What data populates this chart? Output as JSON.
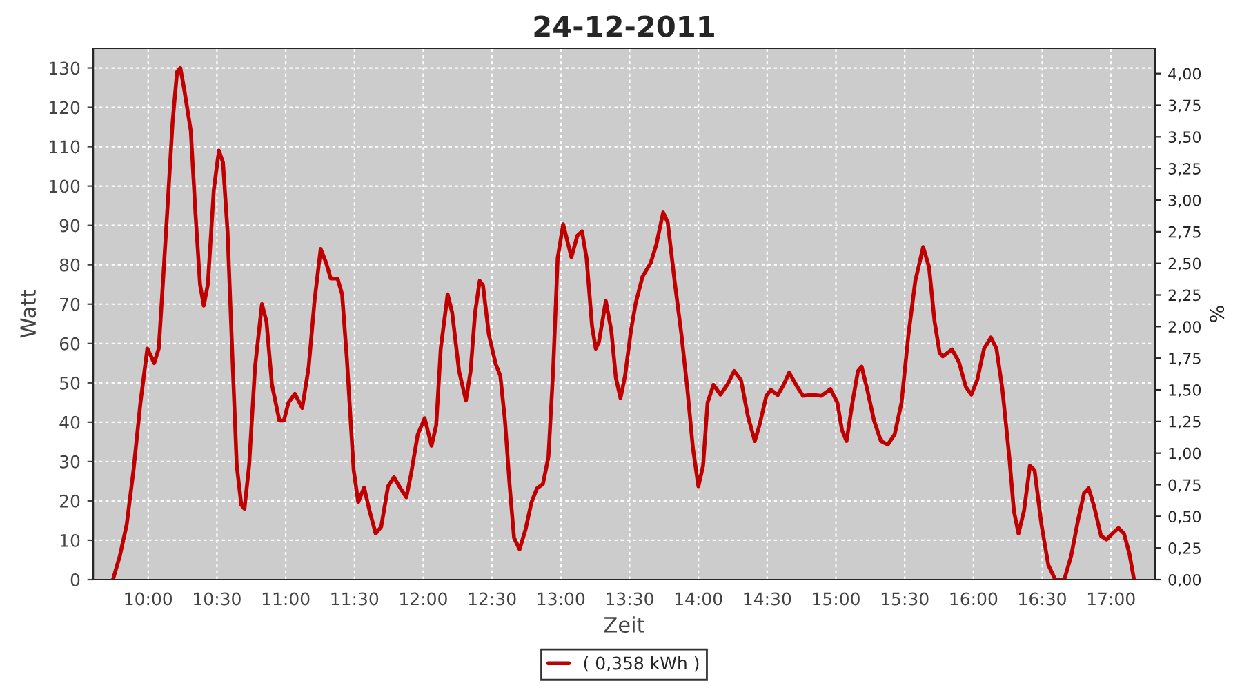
{
  "chart_data": {
    "type": "line",
    "title": "24-12-2011",
    "xlabel": "Zeit",
    "ylabel": "Watt",
    "y2label": "%",
    "xlim": [
      9.6,
      17.32
    ],
    "ylim": [
      0,
      135
    ],
    "y2lim": [
      0,
      4.2
    ],
    "xticks": [
      {
        "value": 10,
        "label": "10:00"
      },
      {
        "value": 10.5,
        "label": "10:30"
      },
      {
        "value": 11,
        "label": "11:00"
      },
      {
        "value": 11.5,
        "label": "11:30"
      },
      {
        "value": 12,
        "label": "12:00"
      },
      {
        "value": 12.5,
        "label": "12:30"
      },
      {
        "value": 13,
        "label": "13:00"
      },
      {
        "value": 13.5,
        "label": "13:30"
      },
      {
        "value": 14,
        "label": "14:00"
      },
      {
        "value": 14.5,
        "label": "14:30"
      },
      {
        "value": 15,
        "label": "15:00"
      },
      {
        "value": 15.5,
        "label": "15:30"
      },
      {
        "value": 16,
        "label": "16:00"
      },
      {
        "value": 16.5,
        "label": "16:30"
      },
      {
        "value": 17,
        "label": "17:00"
      }
    ],
    "yticks": [
      0,
      10,
      20,
      30,
      40,
      50,
      60,
      70,
      80,
      90,
      100,
      110,
      120,
      130
    ],
    "y2ticks": [
      {
        "value": 0,
        "label": "0,00"
      },
      {
        "value": 0.25,
        "label": "0,25"
      },
      {
        "value": 0.5,
        "label": "0,50"
      },
      {
        "value": 0.75,
        "label": "0,75"
      },
      {
        "value": 1,
        "label": "1,00"
      },
      {
        "value": 1.25,
        "label": "1,25"
      },
      {
        "value": 1.5,
        "label": "1,50"
      },
      {
        "value": 1.75,
        "label": "1,75"
      },
      {
        "value": 2,
        "label": "2,00"
      },
      {
        "value": 2.25,
        "label": "2,25"
      },
      {
        "value": 2.5,
        "label": "2,50"
      },
      {
        "value": 2.75,
        "label": "2,75"
      },
      {
        "value": 3,
        "label": "3,00"
      },
      {
        "value": 3.25,
        "label": "3,25"
      },
      {
        "value": 3.5,
        "label": "3,50"
      },
      {
        "value": 3.75,
        "label": "3,75"
      },
      {
        "value": 4,
        "label": "4,00"
      }
    ],
    "grid": true,
    "legend": "bottom",
    "marker": "none",
    "line_style": "solid",
    "series": [
      {
        "name": "( 0,358 kWh )",
        "color": "#c00000",
        "x": [
          9.744,
          9.794,
          9.844,
          9.894,
          9.944,
          9.994,
          10.044,
          10.077,
          10.11,
          10.144,
          10.177,
          10.21,
          10.234,
          10.26,
          10.31,
          10.344,
          10.377,
          10.404,
          10.434,
          10.477,
          10.514,
          10.544,
          10.577,
          10.61,
          10.644,
          10.677,
          10.7,
          10.734,
          10.777,
          10.827,
          10.86,
          10.9,
          10.954,
          10.987,
          11.02,
          11.067,
          11.12,
          11.167,
          11.21,
          11.254,
          11.294,
          11.327,
          11.377,
          11.41,
          11.444,
          11.494,
          11.527,
          11.57,
          11.61,
          11.654,
          11.694,
          11.744,
          11.787,
          11.834,
          11.877,
          11.91,
          11.96,
          12.01,
          12.06,
          12.094,
          12.127,
          12.177,
          12.21,
          12.26,
          12.31,
          12.344,
          12.377,
          12.41,
          12.434,
          12.477,
          12.527,
          12.56,
          12.594,
          12.627,
          12.66,
          12.7,
          12.744,
          12.787,
          12.827,
          12.87,
          12.91,
          12.944,
          12.977,
          13.017,
          13.077,
          13.12,
          13.154,
          13.187,
          13.227,
          13.254,
          13.277,
          13.327,
          13.367,
          13.4,
          13.434,
          13.467,
          13.51,
          13.544,
          13.594,
          13.654,
          13.694,
          13.744,
          13.777,
          13.827,
          13.877,
          13.92,
          13.96,
          14.0,
          14.034,
          14.067,
          14.11,
          14.16,
          14.21,
          14.26,
          14.31,
          14.36,
          14.41,
          14.444,
          14.494,
          14.527,
          14.577,
          14.62,
          14.66,
          14.71,
          14.76,
          14.827,
          14.894,
          14.96,
          15.01,
          15.044,
          15.077,
          15.12,
          15.16,
          15.187,
          15.227,
          15.277,
          15.327,
          15.377,
          15.427,
          15.477,
          15.527,
          15.577,
          15.634,
          15.677,
          15.717,
          15.754,
          15.777,
          15.844,
          15.894,
          15.944,
          15.984,
          16.027,
          16.077,
          16.127,
          16.167,
          16.21,
          16.26,
          16.294,
          16.327,
          16.367,
          16.41,
          16.444,
          16.494,
          16.544,
          16.594,
          16.66,
          16.71,
          16.76,
          16.804,
          16.837,
          16.877,
          16.927,
          16.967,
          17.01,
          17.054,
          17.094,
          17.134,
          17.167
        ],
        "values": [
          0,
          6,
          14,
          28,
          45,
          58.7,
          55,
          58.7,
          77,
          96.6,
          116,
          129,
          130,
          125,
          114,
          93,
          75,
          69.6,
          75,
          99,
          109,
          106,
          88.5,
          58.7,
          29,
          19,
          18,
          29,
          54,
          70,
          65.6,
          49.5,
          40.4,
          40.4,
          45,
          47.2,
          43.6,
          54,
          71,
          84,
          80.5,
          76.5,
          76.5,
          72.5,
          56.4,
          27.8,
          19.7,
          23.4,
          17.4,
          11.7,
          13.4,
          23.7,
          26,
          23.2,
          20.9,
          26.6,
          36.9,
          41,
          34,
          39.2,
          58.7,
          72.5,
          67.9,
          53,
          45.5,
          53,
          67.9,
          75.9,
          74.8,
          62.2,
          54.7,
          51.8,
          40.4,
          24.3,
          10.6,
          7.7,
          12.8,
          19.7,
          23.2,
          24.3,
          31.2,
          53,
          81.7,
          90.3,
          81.9,
          87.4,
          88.5,
          81.7,
          64.4,
          58.7,
          60.4,
          70.8,
          63.3,
          51.3,
          46.1,
          51.8,
          63.3,
          70.2,
          77,
          80.5,
          85.1,
          93.3,
          90.8,
          75.9,
          62.2,
          48.4,
          33.5,
          23.7,
          28.9,
          45,
          49.5,
          47,
          49.5,
          53,
          50.7,
          41.5,
          35.2,
          39.2,
          46.7,
          48.2,
          46.9,
          49.5,
          52.6,
          49.5,
          46.7,
          47,
          46.7,
          48.4,
          45,
          38,
          35.2,
          45,
          53,
          54.1,
          48.4,
          40.4,
          35.2,
          34.3,
          36.9,
          45,
          62.2,
          75.9,
          84.5,
          79.4,
          65.6,
          57.6,
          56.7,
          58.5,
          55.3,
          49,
          47,
          50.7,
          58.7,
          61.5,
          58.7,
          48.4,
          31.2,
          17.4,
          11.7,
          17.4,
          28.9,
          27.8,
          14,
          3.7,
          0,
          0,
          6,
          15.1,
          22,
          23.2,
          18.6,
          11.1,
          10.2,
          11.7,
          13.1,
          11.7,
          6.5,
          0
        ]
      }
    ]
  }
}
